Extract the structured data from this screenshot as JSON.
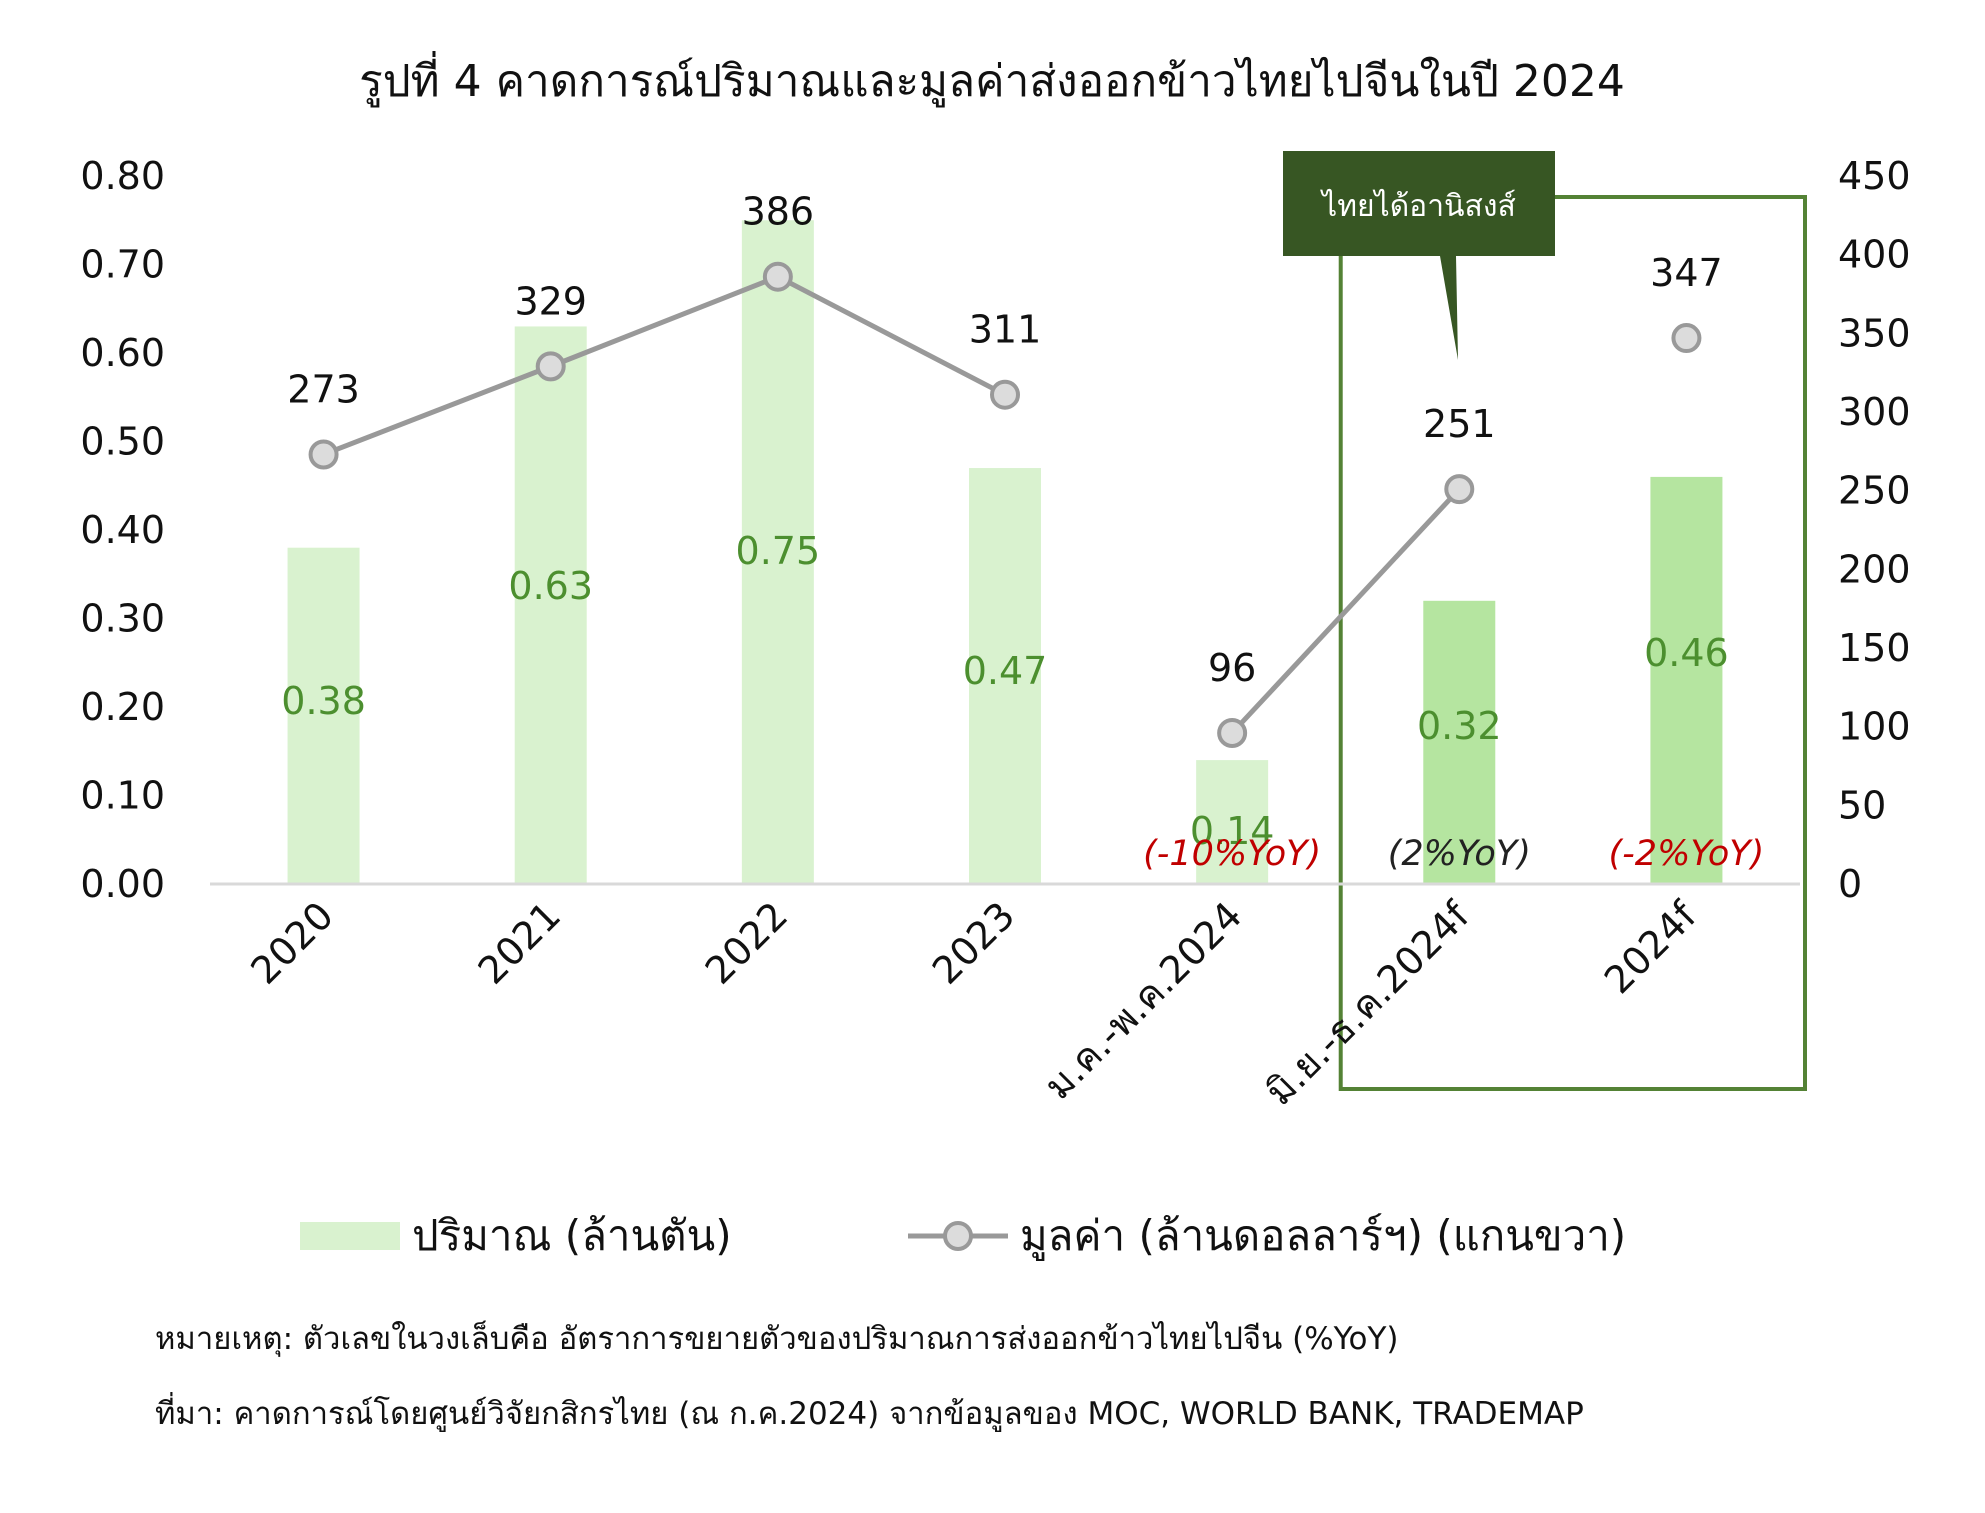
{
  "title": "รูปที่ 4 คาดการณ์ปริมาณและมูลค่าส่งออกข้าวไทยไปจีนในปี 2024",
  "chart_data": {
    "type": "bar",
    "categories": [
      "2020",
      "2021",
      "2022",
      "2023",
      "ม.ค.-พ.ค.2024",
      "มิ.ย.-ธ.ค.2024f",
      "2024f"
    ],
    "series": [
      {
        "name": "ปริมาณ (ล้านตัน)",
        "type": "bar",
        "axis": "left",
        "values": [
          0.38,
          0.63,
          0.75,
          0.47,
          0.14,
          0.32,
          0.46
        ],
        "value_labels": [
          "0.38",
          "0.63",
          "0.75",
          "0.47",
          "0.14",
          "0.32",
          "0.46"
        ],
        "color": "#d9f2cf",
        "highlight_color": "#b5e5a0"
      },
      {
        "name": "มูลค่า (ล้านดอลลาร์ฯ) (แกนขวา)",
        "type": "line",
        "axis": "right",
        "values": [
          273,
          329,
          386,
          311,
          96,
          251,
          347
        ],
        "value_labels": [
          "273",
          "329",
          "386",
          "311",
          "96",
          "251",
          "347"
        ],
        "connected_segments": [
          [
            0,
            3
          ],
          [
            4,
            5
          ]
        ],
        "color": "#999999"
      }
    ],
    "yoy_labels": [
      {
        "category": "ม.ค.-พ.ค.2024",
        "text": "(-10%YoY)",
        "color": "#c00000"
      },
      {
        "category": "มิ.ย.-ธ.ค.2024f",
        "text": "(2%YoY)",
        "color": "#222222"
      },
      {
        "category": "2024f",
        "text": "(-2%YoY)",
        "color": "#c00000"
      }
    ],
    "y_left": {
      "ylim": [
        0,
        0.8
      ],
      "ticks": [
        "0.00",
        "0.10",
        "0.20",
        "0.30",
        "0.40",
        "0.50",
        "0.60",
        "0.70",
        "0.80"
      ]
    },
    "y_right": {
      "ylim": [
        0,
        450
      ],
      "ticks": [
        "0",
        "50",
        "100",
        "150",
        "200",
        "250",
        "300",
        "350",
        "400",
        "450"
      ]
    },
    "highlight": {
      "categories": [
        "มิ.ย.-ธ.ค.2024f",
        "2024f"
      ],
      "label": "ไทยได้อานิสงส์",
      "border_color": "#548235",
      "label_bg": "#375623"
    },
    "grid": false,
    "legend": "bottom"
  },
  "footnotes": {
    "note": "หมายเหตุ: ตัวเลขในวงเล็บคือ อัตราการขยายตัวของปริมาณการส่งออกข้าวไทยไปจีน (%YoY)",
    "source": "ที่มา: คาดการณ์โดยศูนย์วิจัยกสิกรไทย (ณ ก.ค.2024) จากข้อมูลของ MOC, WORLD BANK, TRADEMAP"
  }
}
